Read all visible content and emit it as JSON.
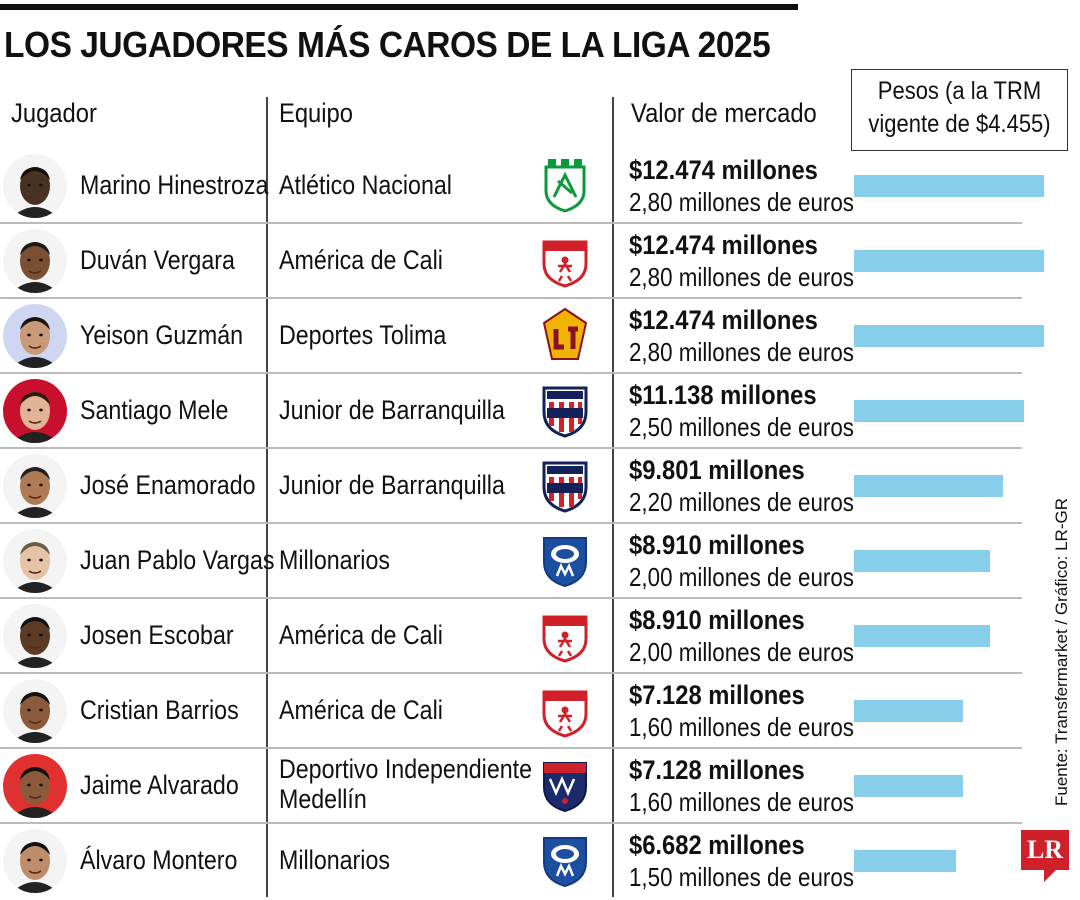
{
  "chart_data": {
    "type": "table",
    "title": "LOS JUGADORES MÁS CAROS DE LA LIGA 2025",
    "columns": [
      "Jugador",
      "Equipo",
      "Valor de mercado"
    ],
    "legend_label": [
      "Pesos (a la TRM",
      "vigente de $4.455)"
    ],
    "source": "Fuente: Transfermarket / Gráfico: LR-GR",
    "bar_max_value": 12.474,
    "rows": [
      {
        "player": "Marino Hinestroza",
        "team": [
          "Atlético Nacional"
        ],
        "crest": "nacional",
        "pesos_label": "$12.474 millones",
        "euros_label": "2,80 millones de euros",
        "value": 12.474
      },
      {
        "player": "Duván Vergara",
        "team": [
          "América de Cali"
        ],
        "crest": "america",
        "pesos_label": "$12.474 millones",
        "euros_label": "2,80 millones de euros",
        "value": 12.474
      },
      {
        "player": "Yeison Guzmán",
        "team": [
          "Deportes Tolima"
        ],
        "crest": "tolima",
        "pesos_label": "$12.474 millones",
        "euros_label": "2,80 millones de euros",
        "value": 12.474
      },
      {
        "player": "Santiago Mele",
        "team": [
          "Junior de Barranquilla"
        ],
        "crest": "junior",
        "pesos_label": "$11.138 millones",
        "euros_label": "2,50 millones de euros",
        "value": 11.138
      },
      {
        "player": "José Enamorado",
        "team": [
          "Junior de Barranquilla"
        ],
        "crest": "junior",
        "pesos_label": "$9.801 millones",
        "euros_label": "2,20 millones de euros",
        "value": 9.801
      },
      {
        "player": "Juan Pablo Vargas",
        "team": [
          "Millonarios"
        ],
        "crest": "millonarios",
        "pesos_label": "$8.910 millones",
        "euros_label": "2,00 millones de euros",
        "value": 8.91
      },
      {
        "player": "Josen Escobar",
        "team": [
          "América de Cali"
        ],
        "crest": "america",
        "pesos_label": "$8.910 millones",
        "euros_label": "2,00 millones de euros",
        "value": 8.91
      },
      {
        "player": "Cristian Barrios",
        "team": [
          "América de Cali"
        ],
        "crest": "america",
        "pesos_label": "$7.128 millones",
        "euros_label": "1,60 millones de euros",
        "value": 7.128
      },
      {
        "player": "Jaime Alvarado",
        "team": [
          "Deportivo Independiente",
          "Medellín"
        ],
        "crest": "medellin",
        "pesos_label": "$7.128 millones",
        "euros_label": "1,60 millones de euros",
        "value": 7.128
      },
      {
        "player": "Álvaro Montero",
        "team": [
          "Millonarios"
        ],
        "crest": "millonarios",
        "pesos_label": "$6.682 millones",
        "euros_label": "1,50 millones de euros",
        "value": 6.682
      }
    ]
  },
  "brand": {
    "logo_text": "LR",
    "logo_color": "#d0202a",
    "bar_color": "#87CEEB"
  }
}
